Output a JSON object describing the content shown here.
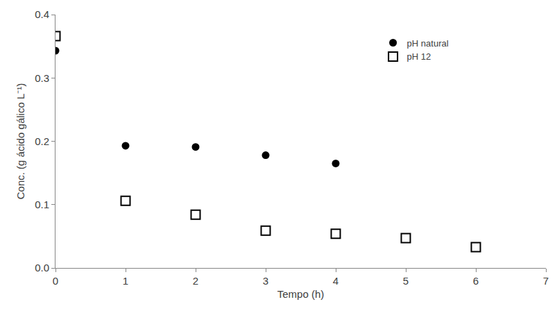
{
  "chart_data": {
    "type": "scatter",
    "x_label": "Tempo (h)",
    "y_label": "Conc. (g ácido gálico L⁻¹)",
    "series": [
      {
        "name": "pH natural",
        "color": "#000000",
        "marker": "circle",
        "x": [
          0,
          1,
          2,
          3,
          4
        ],
        "values": [
          0.343,
          0.193,
          0.191,
          0.178,
          0.165
        ]
      },
      {
        "name": "pH 12",
        "color": "#000000",
        "marker": "square-open",
        "x": [
          0,
          1,
          2,
          3,
          4,
          5,
          6
        ],
        "values": [
          0.366,
          0.106,
          0.084,
          0.059,
          0.054,
          0.047,
          0.033
        ]
      }
    ],
    "xlim": [
      0,
      7
    ],
    "xticks": [
      0,
      1,
      2,
      3,
      4,
      5,
      6,
      7
    ],
    "ylim": [
      0,
      0.4
    ],
    "yticks": [
      {
        "value": 0,
        "label": "0.0"
      },
      0.1,
      0.2,
      0.3,
      0.4
    ],
    "grid": false,
    "legend": "upper right"
  }
}
